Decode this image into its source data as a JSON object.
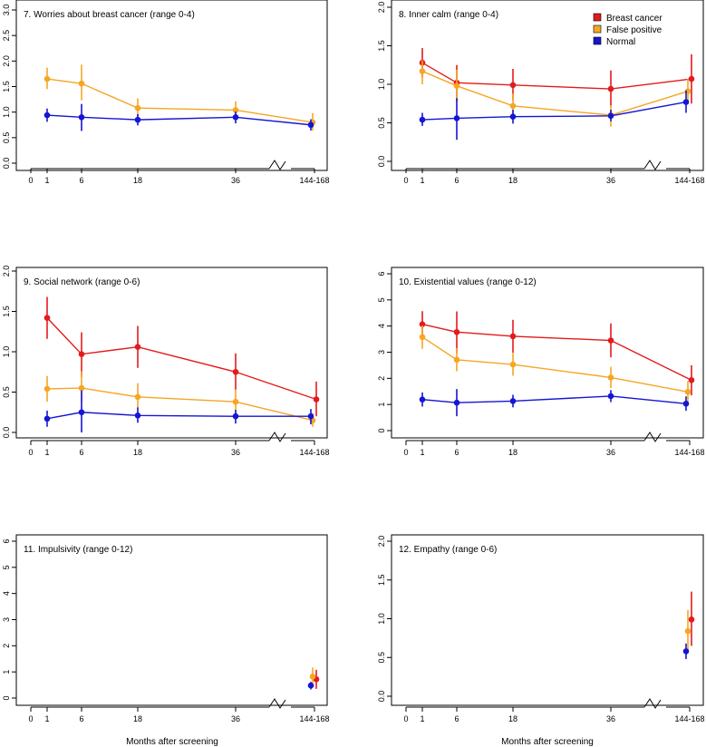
{
  "colors": {
    "breast_cancer": "#e41a1c",
    "false_positive": "#f5a623",
    "normal": "#1515d4"
  },
  "legend": {
    "entries": [
      {
        "key": "breast_cancer",
        "label": "Breast cancer"
      },
      {
        "key": "false_positive",
        "label": "False positive"
      },
      {
        "key": "normal",
        "label": "Normal"
      }
    ]
  },
  "x_axis": {
    "ticks": [
      "0",
      "1",
      "6",
      "18",
      "36",
      "144-168"
    ],
    "xlabel": "Months after screening"
  },
  "chart_data": [
    {
      "type": "line",
      "title": "7. Worries about breast cancer (range 0-4)",
      "ylim": [
        0,
        3
      ],
      "yticks": [
        "0.0",
        "0.5",
        "1.0",
        "1.5",
        "2.0",
        "2.5",
        "3.0"
      ],
      "xlabel": "",
      "series": [
        {
          "name": "False positive",
          "key": "false_positive",
          "points": [
            [
              1,
              1.65,
              1.45,
              1.87
            ],
            [
              6,
              1.56,
              1.23,
              1.93
            ],
            [
              18,
              1.08,
              0.92,
              1.27
            ],
            [
              36,
              1.04,
              0.88,
              1.21
            ],
            [
              144,
              0.8,
              0.64,
              0.98
            ]
          ]
        },
        {
          "name": "Normal",
          "key": "normal",
          "points": [
            [
              1,
              0.94,
              0.81,
              1.07
            ],
            [
              6,
              0.9,
              0.63,
              1.16
            ],
            [
              18,
              0.85,
              0.74,
              0.96
            ],
            [
              36,
              0.9,
              0.78,
              1.01
            ],
            [
              144,
              0.75,
              0.64,
              0.86
            ]
          ]
        }
      ]
    },
    {
      "type": "line",
      "title": "8. Inner calm (range 0-4)",
      "ylim": [
        0,
        2
      ],
      "yticks": [
        "0.0",
        "0.5",
        "1.0",
        "1.5",
        "2.0"
      ],
      "xlabel": "",
      "legend": true,
      "series": [
        {
          "name": "Breast cancer",
          "key": "breast_cancer",
          "points": [
            [
              1,
              1.28,
              1.09,
              1.47
            ],
            [
              6,
              1.02,
              0.78,
              1.25
            ],
            [
              18,
              0.99,
              0.79,
              1.2
            ],
            [
              36,
              0.94,
              0.71,
              1.18
            ],
            [
              144,
              1.07,
              0.75,
              1.39
            ]
          ]
        },
        {
          "name": "False positive",
          "key": "false_positive",
          "points": [
            [
              1,
              1.17,
              1.0,
              1.31
            ],
            [
              6,
              0.98,
              0.78,
              1.19
            ],
            [
              18,
              0.72,
              0.55,
              0.88
            ],
            [
              36,
              0.6,
              0.45,
              0.73
            ],
            [
              144,
              0.91,
              0.74,
              1.07
            ]
          ]
        },
        {
          "name": "Normal",
          "key": "normal",
          "points": [
            [
              1,
              0.54,
              0.46,
              0.63
            ],
            [
              6,
              0.56,
              0.28,
              0.82
            ],
            [
              18,
              0.58,
              0.49,
              0.67
            ],
            [
              36,
              0.59,
              0.52,
              0.67
            ],
            [
              144,
              0.77,
              0.63,
              0.92
            ]
          ]
        }
      ]
    },
    {
      "type": "line",
      "title": "9. Social network (range 0-6)",
      "ylim": [
        0,
        2
      ],
      "yticks": [
        "0.0",
        "0.5",
        "1.0",
        "1.5",
        "2.0"
      ],
      "xlabel": "",
      "series": [
        {
          "name": "Breast cancer",
          "key": "breast_cancer",
          "points": [
            [
              1,
              1.42,
              1.16,
              1.68
            ],
            [
              6,
              0.97,
              0.69,
              1.24
            ],
            [
              18,
              1.06,
              0.8,
              1.32
            ],
            [
              36,
              0.75,
              0.53,
              0.98
            ],
            [
              144,
              0.41,
              0.2,
              0.63
            ]
          ]
        },
        {
          "name": "False positive",
          "key": "false_positive",
          "points": [
            [
              1,
              0.54,
              0.38,
              0.7
            ],
            [
              6,
              0.55,
              0.37,
              0.76
            ],
            [
              18,
              0.44,
              0.29,
              0.61
            ],
            [
              36,
              0.38,
              0.23,
              0.53
            ],
            [
              144,
              0.15,
              0.07,
              0.24
            ]
          ]
        },
        {
          "name": "Normal",
          "key": "normal",
          "points": [
            [
              1,
              0.17,
              0.07,
              0.27
            ],
            [
              6,
              0.25,
              0.0,
              0.52
            ],
            [
              18,
              0.21,
              0.12,
              0.31
            ],
            [
              36,
              0.2,
              0.11,
              0.28
            ],
            [
              144,
              0.2,
              0.1,
              0.29
            ]
          ]
        }
      ]
    },
    {
      "type": "line",
      "title": "10. Existential values (range 0-12)",
      "ylim": [
        0,
        6
      ],
      "yticks": [
        "0",
        "1",
        "2",
        "3",
        "4",
        "5",
        "6"
      ],
      "xlabel": "",
      "series": [
        {
          "name": "Breast cancer",
          "key": "breast_cancer",
          "points": [
            [
              1,
              4.07,
              3.57,
              4.57
            ],
            [
              6,
              3.77,
              2.96,
              4.56
            ],
            [
              18,
              3.61,
              2.98,
              4.24
            ],
            [
              36,
              3.45,
              2.8,
              4.1
            ],
            [
              144,
              1.93,
              1.35,
              2.5
            ]
          ]
        },
        {
          "name": "False positive",
          "key": "false_positive",
          "points": [
            [
              1,
              3.58,
              3.13,
              4.02
            ],
            [
              6,
              2.71,
              2.27,
              3.16
            ],
            [
              18,
              2.53,
              2.1,
              2.97
            ],
            [
              36,
              2.03,
              1.63,
              2.44
            ],
            [
              144,
              1.48,
              1.06,
              1.9
            ]
          ]
        },
        {
          "name": "Normal",
          "key": "normal",
          "points": [
            [
              1,
              1.19,
              0.92,
              1.46
            ],
            [
              6,
              1.07,
              0.55,
              1.59
            ],
            [
              18,
              1.13,
              0.89,
              1.37
            ],
            [
              36,
              1.32,
              1.09,
              1.55
            ],
            [
              144,
              1.03,
              0.76,
              1.31
            ]
          ]
        }
      ]
    },
    {
      "type": "line",
      "title": "11. Impulsivity (range 0-12)",
      "ylim": [
        0,
        6
      ],
      "yticks": [
        "0",
        "1",
        "2",
        "3",
        "4",
        "5",
        "6"
      ],
      "xlabel": "Months after screening",
      "series": [
        {
          "name": "Breast cancer",
          "key": "breast_cancer",
          "points": [
            [
              144,
              0.72,
              0.35,
              1.08
            ]
          ]
        },
        {
          "name": "False positive",
          "key": "false_positive",
          "points": [
            [
              144,
              0.82,
              0.5,
              1.17
            ]
          ]
        },
        {
          "name": "Normal",
          "key": "normal",
          "points": [
            [
              144,
              0.48,
              0.33,
              0.62
            ]
          ]
        }
      ]
    },
    {
      "type": "line",
      "title": "12. Empathy (range 0-6)",
      "ylim": [
        0,
        2
      ],
      "yticks": [
        "0.0",
        "0.5",
        "1.0",
        "1.5",
        "2.0"
      ],
      "xlabel": "Months after screening",
      "series": [
        {
          "name": "Breast cancer",
          "key": "breast_cancer",
          "points": [
            [
              144,
              0.99,
              0.65,
              1.35
            ]
          ]
        },
        {
          "name": "False positive",
          "key": "false_positive",
          "points": [
            [
              144,
              0.84,
              0.56,
              1.11
            ]
          ]
        },
        {
          "name": "Normal",
          "key": "normal",
          "points": [
            [
              144,
              0.58,
              0.48,
              0.68
            ]
          ]
        }
      ]
    }
  ]
}
